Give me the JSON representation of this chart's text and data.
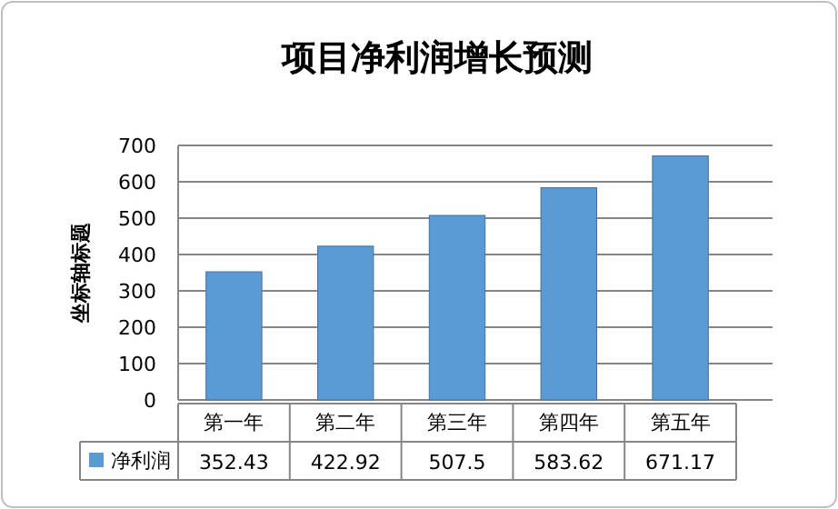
{
  "chart_data": {
    "type": "bar",
    "title": "项目净利润增长预测",
    "ylabel": "坐标轴标题",
    "categories": [
      "第一年",
      "第二年",
      "第三年",
      "第四年",
      "第五年"
    ],
    "series": [
      {
        "name": "净利润",
        "color": "#5b9bd5",
        "values": [
          352.43,
          422.92,
          507.5,
          583.62,
          671.17
        ]
      }
    ],
    "ylim": [
      0,
      700
    ],
    "yticks": [
      0,
      100,
      200,
      300,
      400,
      500,
      600,
      700
    ],
    "grid": "y",
    "legend": "bottom",
    "data_labels": true
  }
}
